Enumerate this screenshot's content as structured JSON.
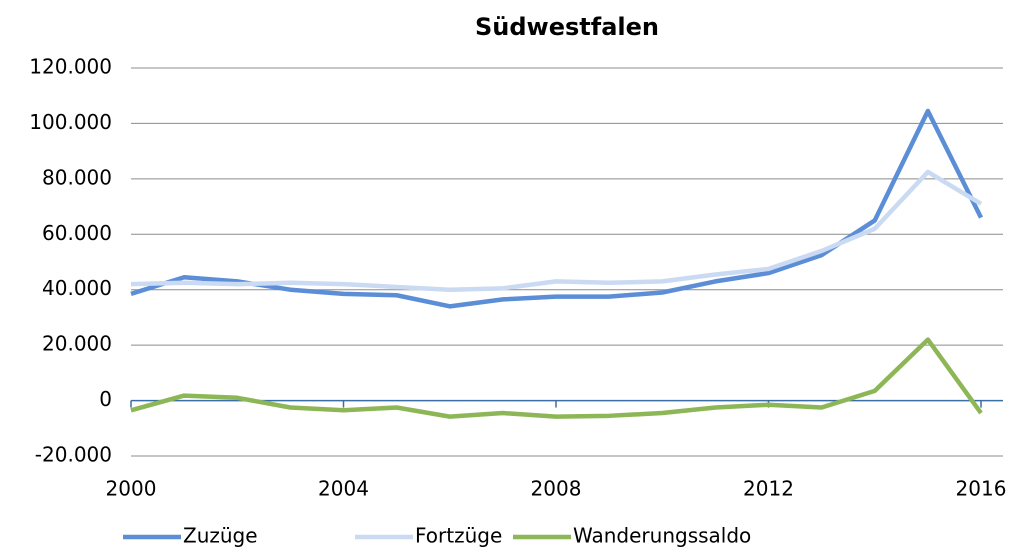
{
  "chart_data": {
    "type": "line",
    "title": "Südwestfalen",
    "x": [
      2000,
      2001,
      2002,
      2003,
      2004,
      2005,
      2006,
      2007,
      2008,
      2009,
      2010,
      2011,
      2012,
      2013,
      2014,
      2015,
      2016
    ],
    "xlim": [
      2000,
      2016
    ],
    "xticks": [
      2000,
      2004,
      2008,
      2012,
      2016
    ],
    "ylim": [
      -20000,
      120000
    ],
    "yticks": [
      {
        "value": -20000,
        "label": "-20.000"
      },
      0,
      {
        "value": 20000,
        "label": "20.000"
      },
      {
        "value": 40000,
        "label": "40.000"
      },
      {
        "value": 60000,
        "label": "60.000"
      },
      {
        "value": 80000,
        "label": "80.000"
      },
      {
        "value": 100000,
        "label": "100.000"
      },
      {
        "value": 120000,
        "label": "120.000"
      }
    ],
    "grid": true,
    "legend": "bottom",
    "series": [
      {
        "name": "Zuzüge",
        "color": "#5b8ed6",
        "values": [
          38500,
          44500,
          43000,
          40000,
          38500,
          38000,
          34000,
          36500,
          37500,
          37500,
          39000,
          43000,
          46000,
          52500,
          65000,
          104500,
          66000
        ]
      },
      {
        "name": "Fortzüge",
        "color": "#c9daf2",
        "values": [
          42000,
          42500,
          42000,
          42500,
          42000,
          41000,
          40000,
          40500,
          43000,
          42500,
          43000,
          45500,
          47500,
          54000,
          62000,
          82500,
          71000
        ]
      },
      {
        "name": "Wanderungssaldo",
        "color": "#8db657",
        "values": [
          -3500,
          1800,
          1000,
          -2500,
          -3500,
          -2500,
          -5800,
          -4500,
          -5800,
          -5500,
          -4500,
          -2500,
          -1500,
          -2500,
          3500,
          22000,
          -4500
        ]
      }
    ]
  }
}
